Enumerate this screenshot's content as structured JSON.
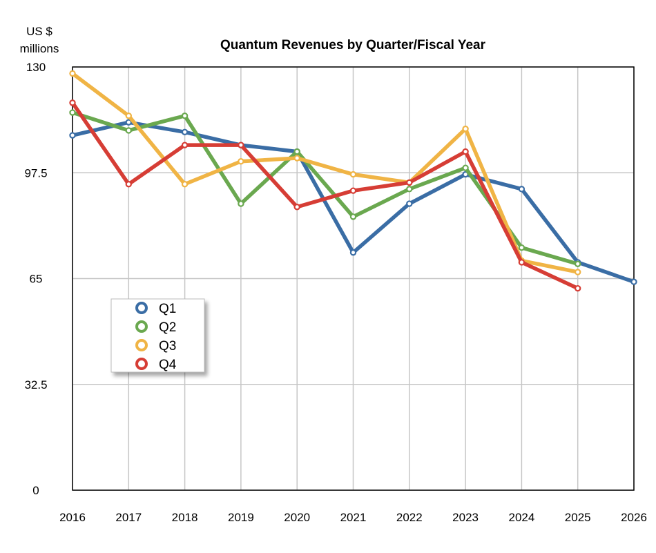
{
  "chart_data": {
    "type": "line",
    "title": "Quantum Revenues by Quarter/Fiscal Year",
    "ylabel": [
      "US $",
      "millions"
    ],
    "xlabel": "",
    "ylim": [
      0,
      130
    ],
    "y_ticks": [
      "0",
      "32.5",
      "65",
      "97.5",
      "130"
    ],
    "y_tick_values": [
      0,
      32.5,
      65,
      97.5,
      130
    ],
    "x": [
      "2016",
      "2017",
      "2018",
      "2019",
      "2020",
      "2021",
      "2022",
      "2023",
      "2024",
      "2025",
      "2026"
    ],
    "grid": true,
    "legend_placement": "lower-left",
    "series": [
      {
        "name": "Q1",
        "color": "#3a6da5",
        "values": [
          109,
          113,
          110,
          106,
          104,
          73,
          88,
          97,
          92.5,
          70,
          64
        ]
      },
      {
        "name": "Q2",
        "color": "#6aa84f",
        "values": [
          116,
          110.5,
          115,
          88,
          104,
          84,
          92.5,
          99,
          74.5,
          69.5,
          null
        ]
      },
      {
        "name": "Q3",
        "color": "#f0b445",
        "values": [
          128,
          115,
          94,
          101,
          102,
          97,
          94.5,
          111,
          70.5,
          67,
          null
        ]
      },
      {
        "name": "Q4",
        "color": "#d63d35",
        "values": [
          119,
          94,
          106,
          106,
          87,
          92,
          94.5,
          104,
          70,
          62,
          null
        ]
      }
    ]
  }
}
